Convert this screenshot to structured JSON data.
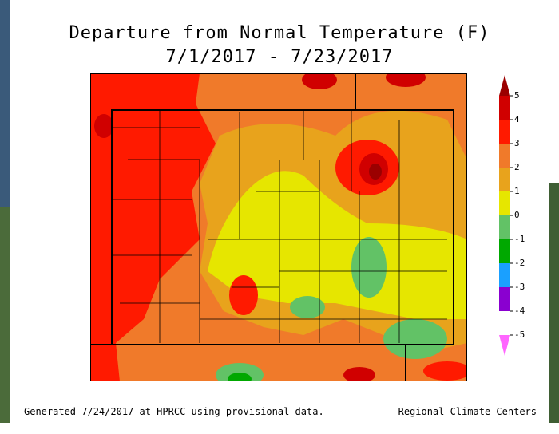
{
  "header": {
    "title": [
      "Departure from Normal Temperature (F)",
      "7/1/2017 - 7/23/2017"
    ]
  },
  "legend": {
    "labels": [
      5,
      4,
      3,
      2,
      1,
      0,
      -1,
      -2,
      -3,
      -4,
      -5
    ],
    "colors": [
      "#9b0000",
      "#d00000",
      "#ff1a00",
      "#f07a2a",
      "#e8a31c",
      "#e6e600",
      "#62c266",
      "#00a800",
      "#1aa0ff",
      "#8a00d0",
      "#ff66ff"
    ]
  },
  "footer": {
    "left": "Generated 7/24/2017 at HPRCC using provisional data.",
    "right": "Regional Climate Centers"
  }
}
